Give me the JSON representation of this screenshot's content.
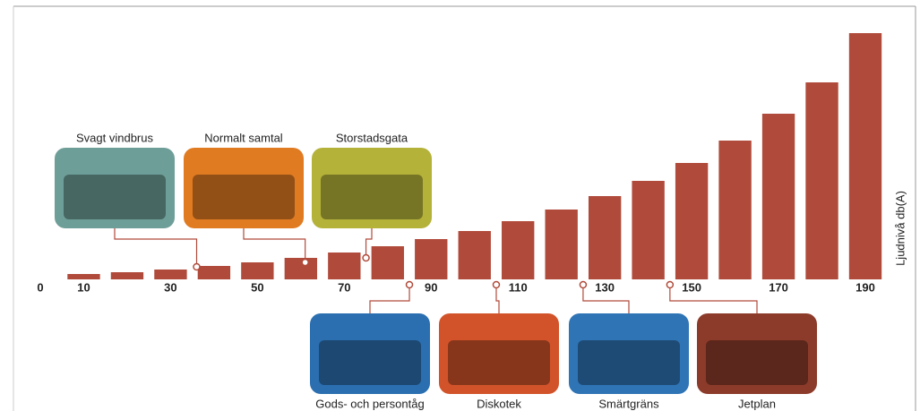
{
  "chart_data": {
    "type": "bar",
    "y_label": "Ljudnivå db(A)",
    "x": [
      10,
      20,
      30,
      40,
      50,
      60,
      70,
      80,
      90,
      100,
      110,
      120,
      130,
      140,
      150,
      160,
      170,
      180,
      190
    ],
    "values": [
      6,
      8,
      11,
      15,
      19,
      24,
      30,
      37,
      45,
      54,
      65,
      78,
      93,
      110,
      130,
      155,
      185,
      220,
      275
    ],
    "color": "#b04a3a",
    "xlim": [
      0,
      190
    ],
    "xticks": [
      0,
      10,
      30,
      50,
      70,
      90,
      110,
      130,
      150,
      170,
      190
    ],
    "ylim": [
      0,
      300
    ],
    "annotations": [
      {
        "label": "Svagt vindbrus",
        "x": 36
      },
      {
        "label": "Normalt samtal",
        "x": 61
      },
      {
        "label": "Storstadsgata",
        "x": 75
      },
      {
        "label": "Gods- och persontåg",
        "x": 85
      },
      {
        "label": "Diskotek",
        "x": 105
      },
      {
        "label": "Smärtgräns",
        "x": 125
      },
      {
        "label": "Jetplan",
        "x": 145
      }
    ]
  }
}
